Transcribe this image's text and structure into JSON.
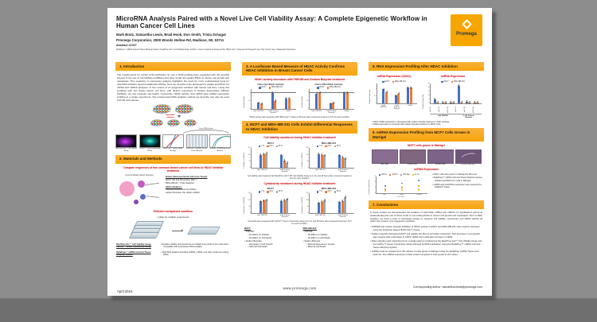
{
  "poster": {
    "title": "MicroRNA Analysis Paired with a Novel Live Cell Viability Assay: A Complete Epigenetic Workflow in Human Cancer Cell Lines",
    "authors": "Mark Bratz, Samantha Lewis, Brad Hook, Don Smith, Trista Schagat",
    "affiliation": "Promega Corporation, 2800 Woods Hollow Rd, Madison, WI, 53711",
    "abstract_number": "Abstract #1007",
    "disclaimer": "ReliaPrep™ miRNA Cell and Tissue Miniprep System, RealTime-Glo™ Cell Viability Assay, CellTox™ Green Cytotoxicity Assay and the HDAC-Glo™ Assay are For Research Use Only. Not for Use in Diagnostic Procedures.",
    "logo_text": "Promega",
    "date": "April 2016",
    "website": "www.promega.com",
    "corresponding": "Corresponding author: samantha.lewis@promega.com"
  },
  "sections": {
    "s1": {
      "title": "1.  Introduction",
      "body": "The requirements for nucleic acid purification for use in RNA profiling have expanded with the growing interest in the role of microRNAs (miRNAs) and other small non-coding RNAs in cancer cell growth and metastasis. This evolution of expression analysis highlights the need for more sophisticated tools for total RNA isolation beyond traditional mRNAs. Here we describe tools developed to isolate total RNA, for mRNA and miRNA analyses, in the context of an epigenetic workflow with cancer cell lines. Using this workflow with two breast cancer cell lines, with distinct responses to histone deacetylase (HDAC) inhibition, we can measure cell health, cytotoxicity, HDAC activity, and mRNA plus miRNA expression profiling in a single experiment. The manual total RNA isolation method we describe can also be used with 3D cell cultures.",
      "figure": {
        "treat_label": "Add HDAC\nInhibitors",
        "arc_label": "Same RNA Sample",
        "captions": [
          "RealTime-Glo™ Cell Viability Assay",
          "CellTox™ Green Cytotoxicity Assay",
          "HDAC-Glo™ Assay (HDAC Activity)",
          "ReliaPrep™ miRNA Cell and Tissue Miniprep",
          "miRNA + mRNA Expression Analysis"
        ]
      }
    },
    "s2": {
      "title": "2.  Materials and Methods",
      "compare_heading": "Compare responses of two common breast cancer cell lines to HDAC inhibitor treatment",
      "diagram_title": "Common Breast Cancer Subtypes",
      "cell_lines_heading": "Breast Adenocarcinoma Cell Lines Tested:",
      "cell_lines": [
        "MCF7: ER and PR positive (ER+)",
        "MDA-MB-231: “Triple Negative”"
      ],
      "inhibitors_heading": "HDAC Inhibitors:",
      "inhibitors": [
        "TMP269: HDAC class IIa inhibitor",
        "Sodium Butyrate: Pan HDAC inhibitor"
      ],
      "workflow_heading": "Efficient multiplexed workflow",
      "plate_note": "1 plate for multiple experiments",
      "products": [
        {
          "name": "RealTime-Glo™ Cell Viability Assay, CellTox™ Green Cytotoxicity Assay",
          "desc": "Enables viability and cytotoxicity at multiple time points in live cells and is compatible with downstream RNA isolation"
        },
        {
          "name": "ReliaPrep™ miRNA Cell and Tissue Miniprep System",
          "desc": "Total RNA isolation including miRNA, mRNA, and other small non-coding RNAs"
        }
      ]
    },
    "s3": {
      "title": "3.  A Luciferase Based Measure of HDAC Activity Confirms HDAC Inhibition in Breast Cancer Cells",
      "subtitle": "HDAC activity decreases with TMP269 and Sodium Butyrate treatment",
      "caption": "HDAC activity was measured with HDAC-Glo™ Assay at 48 hours after compound treatment. N=3 for each condition."
    },
    "s4": {
      "title": "4.  MCF7 and MDA-MB-231 Cells Exhibit Differential Responses to HDAC Inhibition",
      "viability_heading": "Cell viability monitored during HDAC inhibitor treatment",
      "viability_caption": "Cell viability was measured with RealTime-Glo™ MT Cell Viability Assay at 4, 24, and 48 hours after compound treatment. N=3 for each condition.",
      "cytotox_heading": "Cytotoxicity monitored during HDAC inhibitor treatment",
      "cytotox_caption": "Cell death was measured with CellTox™ Green Cytotoxicity Assay at 4, 24, and 48 hours after compound treatment. N=3 for each condition.",
      "summary": [
        {
          "title": "MCF7:",
          "groups": [
            {
              "label": "TMP269:",
              "subitems": [
                "No Effect on Viability",
                "No Effect on Cell Death"
              ]
            },
            {
              "label": "Sodium Butyrate:",
              "subitems": [
                "Decrease in Cell Growth",
                "Minimal Cell Death"
              ]
            }
          ]
        },
        {
          "title": "MDA-MB-231:",
          "groups": [
            {
              "label": "TMP269:",
              "subitems": [
                "No Effect on Viability",
                "No Effect on Cell Death"
              ]
            },
            {
              "label": "Sodium Butyrate:",
              "subitems": [
                "Minimal Decrease in Growth",
                "Minimal Cell Death"
              ]
            }
          ]
        }
      ]
    },
    "s5": {
      "title": "5.  RNA Expression Profiling After HDAC Inhibition",
      "mrna_heading": "mRNA Expression (CDK2)",
      "mirna_heading": "miRNA Expression",
      "notes": [
        "CDK2 mRNA expression is decreased with sodium butyrate treatment in both cell lines.",
        "miR21 expression is increased with sodium butyrate treatment in MCF7 cells."
      ]
    },
    "s6": {
      "title": "6.  miRNA Expression Profiling from MCF7 Cells Grown in Matrigel",
      "images_heading": "MCF7 cells grown in Matrigel",
      "image_labels": [
        "500 Cells",
        "2,000 Cells",
        "10,000 Cells",
        "10,000 Cells 40X"
      ],
      "mirna_heading": "miRNA Expression",
      "bullets": [
        "MCF7 cells were grown in Matrigel for 48 hours.",
        "ReliaPrep™ miRNA Cell and Tissue Miniprep System isolates total RNA from cells in Matrigel.",
        "miRNA and small RNA expression was measured by TaqMan® Assay."
      ]
    },
    "s7": {
      "title": "7.  Conclusions",
      "body": "In these studies we demonstrated the isolation of total RNA, mRNA and miRNA, for applications aimed at understanding the role of these small or non-coding RNAs in cancer cell growth and metastasis. Prior to RNA isolation, we used a suite of cell-based assays to measure cell viability, cytotoxicity, and HDAC activity all within the context of an epigenetic workflow.",
      "bullets": [
        "TMP269 and sodium butyrate inhibition of HDAC activity in MCF7 and MDA-MB-231 cells could be detected using the luciferase-based HDAC-Glo™ Assay.",
        "Sodium butyrate decreased MCF7 cell viability but did not stimulate cytotoxicity. This decrease in cell growth was coupled with a decrease in CDK2 mRNA and a dramatic increase in miR21.",
        "Data collection was maximized from a single plate by multiplexing the RealTime-Glo™ Cell Viability Assay and the CellTox™ Green Cytotoxicity Assay followed by RNA purification using the ReliaPrep™ miRNA Cell and Tissue Miniprep System.",
        "miRNA could be isolated from 3D cultures of cells grown in Matrigel using the ReliaPrep miRNA Tissue and Cells Kit. The miRNA expression profile varied compared to cells grown in 2D culture."
      ]
    }
  },
  "chart_data": {
    "hdac_class2a": {
      "type": "bar",
      "title": "Class IIa HDAC Activity",
      "ylabel": "Relative Activity",
      "ylim": [
        0,
        1.2
      ],
      "yticks": [
        0,
        0.5,
        1
      ],
      "refline": 1.0,
      "categories": [
        "1μM TMP269",
        "5mM Sodium\nButyrate",
        "DMSO"
      ],
      "series": [
        {
          "name": "MCF7",
          "color": "#4472C4",
          "values": [
            0.4,
            1.0,
            0.65
          ]
        },
        {
          "name": "MDA-MB-231",
          "color": "#ED7D31",
          "values": [
            0.35,
            0.5,
            0.65
          ]
        }
      ]
    },
    "hdac_class1": {
      "type": "bar",
      "title": "Class I/IIb HDAC Activity",
      "ylabel": "Relative Activity",
      "ylim": [
        0,
        1.2
      ],
      "yticks": [
        0,
        0.5,
        1
      ],
      "refline": 1.0,
      "categories": [
        "1μM TMP269",
        "5mM Sodium\nButyrate",
        "DMSO"
      ],
      "series": [
        {
          "name": "MCF7",
          "color": "#4472C4",
          "values": [
            0.95,
            0.35,
            1.0
          ]
        },
        {
          "name": "MDA-MB-231",
          "color": "#ED7D31",
          "values": [
            1.0,
            0.4,
            1.0
          ]
        }
      ]
    },
    "viab_mcf7": {
      "type": "bar",
      "title": "MCF7",
      "ylabel": "% Viability (vs DMSO)",
      "ylim": [
        0,
        150
      ],
      "yticks": [
        0,
        50,
        100,
        150
      ],
      "categories": [
        "1μM TMP269",
        "5mM Sodium\nButyrate"
      ],
      "series": [
        {
          "name": "4 hr",
          "color": "#4472C4",
          "values": [
            100,
            95
          ]
        },
        {
          "name": "24 hr",
          "color": "#ED7D31",
          "values": [
            105,
            55
          ]
        },
        {
          "name": "48 hr",
          "color": "#A5A5A5",
          "values": [
            112,
            40
          ]
        }
      ]
    },
    "viab_mda": {
      "type": "bar",
      "title": "MDA-MB-231",
      "ylabel": "% Viability (vs DMSO)",
      "ylim": [
        0,
        150
      ],
      "yticks": [
        0,
        50,
        100,
        150
      ],
      "categories": [
        "1μM TMP269",
        "5mM Sodium\nButyrate"
      ],
      "series": [
        {
          "name": "4 hr",
          "color": "#4472C4",
          "values": [
            105,
            95
          ]
        },
        {
          "name": "24 hr",
          "color": "#ED7D31",
          "values": [
            100,
            82
          ]
        },
        {
          "name": "48 hr",
          "color": "#A5A5A5",
          "values": [
            95,
            72
          ]
        }
      ]
    },
    "tox_mcf7": {
      "type": "bar",
      "title": "MCF7",
      "ylabel": "Cytotoxicity (vs DMSO)",
      "ylim": [
        0,
        150
      ],
      "yticks": [
        0,
        50,
        100,
        150
      ],
      "categories": [
        "1μM TMP269",
        "5mM Sodium\nButyrate"
      ],
      "series": [
        {
          "name": "4 hr",
          "color": "#4472C4",
          "values": [
            90,
            92
          ]
        },
        {
          "name": "24 hr",
          "color": "#ED7D31",
          "values": [
            96,
            100
          ]
        },
        {
          "name": "48 hr",
          "color": "#A5A5A5",
          "values": [
            102,
            108
          ]
        }
      ]
    },
    "tox_mda": {
      "type": "bar",
      "title": "MDA-MB-231",
      "ylabel": "Cytotoxicity (vs DMSO)",
      "ylim": [
        0,
        150
      ],
      "yticks": [
        0,
        50,
        100,
        150
      ],
      "categories": [
        "1μM TMP269",
        "5mM Sodium\nButyrate"
      ],
      "series": [
        {
          "name": "4 hr",
          "color": "#4472C4",
          "values": [
            78,
            85
          ]
        },
        {
          "name": "24 hr",
          "color": "#ED7D31",
          "values": [
            88,
            95
          ]
        },
        {
          "name": "48 hr",
          "color": "#A5A5A5",
          "values": [
            98,
            125
          ]
        }
      ]
    },
    "cdk2_mrna": {
      "type": "bar",
      "ylabel": "Relative Expression",
      "ylim": [
        0,
        1.4
      ],
      "yticks": [
        0,
        0.5,
        1
      ],
      "categories": [
        "1μM\nTMP269",
        "5mM\nSodium\nButyrate",
        "DMSO"
      ],
      "series": [
        {
          "name": "MCF7",
          "color": "#4472C4",
          "values": [
            1.0,
            0.55,
            1.1
          ]
        },
        {
          "name": "MDA-MB-231",
          "color": "#ED7D31",
          "values": [
            0.8,
            0.7,
            1.1
          ]
        }
      ]
    },
    "mirna_expression": {
      "type": "bar",
      "ylabel": "Relative Expression",
      "ylim": [
        0,
        25
      ],
      "yticks": [
        0,
        5,
        10,
        15,
        20,
        25
      ],
      "rotate_labels": true,
      "categories": [
        "miR-21",
        "miR-16",
        "miR-26a",
        "miR-21",
        "miR-16",
        "miR-26a"
      ],
      "group_labels": [
        "1μM TMP269",
        "5 mM Sodium\nButyrate"
      ],
      "series": [
        {
          "name": "MCF7",
          "color": "#4472C4",
          "values": [
            5,
            1.5,
            1,
            22,
            2,
            1.5
          ]
        },
        {
          "name": "MDA-MB-231",
          "color": "#ED7D31",
          "values": [
            1.5,
            1,
            1,
            1.5,
            1,
            1
          ]
        }
      ]
    },
    "matrigel_mirna": {
      "type": "scatter",
      "ylabel": "Relative Expression",
      "xlabel": "# of Cells",
      "ylim": [
        0,
        6
      ],
      "yticks": [
        0,
        2,
        4,
        6
      ],
      "categories": [
        "500",
        "2,000",
        "10,000"
      ],
      "series": [
        {
          "name": "miR-21",
          "color": "#4472C4",
          "values": [
            2.5,
            3.5,
            4.5
          ]
        },
        {
          "name": "miR-16",
          "color": "#ED7D31",
          "values": [
            1.5,
            2.0,
            2.5
          ]
        },
        {
          "name": "miR-26a",
          "color": "#A5A5A5",
          "values": [
            1.0,
            1.2,
            1.5
          ]
        },
        {
          "name": "let-7a",
          "color": "#FFC000",
          "values": [
            0.8,
            1.0,
            1.2
          ]
        }
      ]
    }
  }
}
